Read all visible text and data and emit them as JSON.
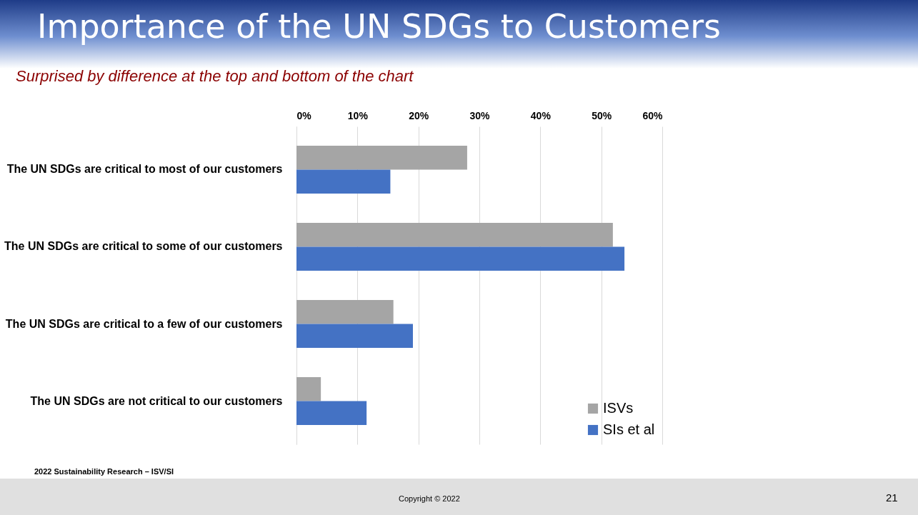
{
  "chart_data": {
    "type": "bar",
    "orientation": "horizontal",
    "title": "Importance of the UN SDGs to Customers",
    "subtitle": "Surprised by difference at the top and bottom of the chart",
    "categories": [
      "The UN SDGs are critical to most of our customers",
      "The UN SDGs are critical to some of our customers",
      "The UN SDGs are critical to a few of our customers",
      "The UN SDGs are not critical to our customers"
    ],
    "series": [
      {
        "name": "ISVs",
        "color": "#a5a5a5",
        "values": [
          28,
          51.9,
          15.9,
          4
        ]
      },
      {
        "name": "SIs et al",
        "color": "#4472c4",
        "values": [
          15.4,
          53.8,
          19.1,
          11.5
        ]
      }
    ],
    "xlim": [
      0,
      60
    ],
    "xticks": [
      {
        "value": 0,
        "label": "0%"
      },
      {
        "value": 10,
        "label": "10%"
      },
      {
        "value": 20,
        "label": "20%"
      },
      {
        "value": 30,
        "label": "30%"
      },
      {
        "value": 40,
        "label": "40%"
      },
      {
        "value": 50,
        "label": "50%"
      },
      {
        "value": 60,
        "label": "60%"
      }
    ],
    "grid": "x",
    "legend": "bottom right",
    "annotations": [
      "2022 Sustainability Research – ISV/SI",
      "Copyright © 2022",
      "21"
    ]
  }
}
